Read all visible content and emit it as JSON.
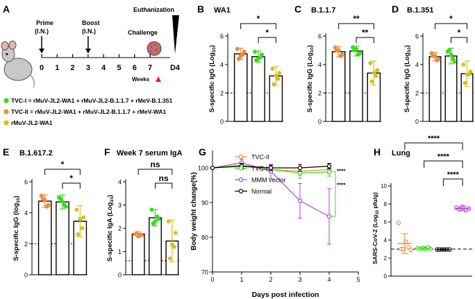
{
  "panel_letters": {
    "A": "A",
    "B": "B",
    "C": "C",
    "D": "D",
    "E": "E",
    "F": "F",
    "G": "G",
    "H": "H"
  },
  "timeline": {
    "prime": "Prime",
    "prime_sub": "(I.N.)",
    "boost": "Boost",
    "boost_sub": "(I.N.)",
    "euthanization": "Euthanization",
    "challenge": "Challenge",
    "weeks_label": "Weeks",
    "ticks": [
      "0",
      "1",
      "2",
      "3",
      "4",
      "5",
      "6",
      "7",
      "D4"
    ],
    "prime_week": 0,
    "boost_week": 3,
    "challenge_week": 7
  },
  "legend_A": [
    {
      "text": "TVC-I = rMuV-JL2-WA1 + rMuV-JL2-B.1.1.7 + rMeV-B.1.351",
      "color": "#3ddc1e"
    },
    {
      "text": "TVC-II = rMuV-JL2-WA1 + rMuV-JL2-B.1.1.7 + rMeV-WA1",
      "color": "#f08a3c"
    },
    {
      "text": "rMuV-JL2-WA1",
      "color": "#d4c21e"
    }
  ],
  "colors": {
    "orange": "#f08a3c",
    "green": "#3ddc1e",
    "olive": "#d4c21e",
    "purple": "#b43fe0",
    "black": "#000000",
    "gray": "#555555"
  },
  "chart_data": [
    {
      "id": "B",
      "type": "bar",
      "title": "WA1",
      "ylabel": "S-specific IgG (Log10)",
      "ylabel_main": "S-specific IgG (Log",
      "ylabel_sub": "10",
      "ylabel_end": ")",
      "ylim": [
        0,
        6
      ],
      "yticks": [
        "0",
        "2",
        "4",
        "6"
      ],
      "dotted_line": 2,
      "categories": [
        "TVC-II",
        "TVC-I",
        "rMuV-JL2-WA1"
      ],
      "values": [
        4.75,
        4.55,
        3.2
      ],
      "errors": [
        0.4,
        0.4,
        0.65
      ],
      "colors": [
        "#f08a3c",
        "#3ddc1e",
        "#d4c21e"
      ],
      "points": [
        [
          5.1,
          4.9,
          4.4,
          4.7,
          4.6
        ],
        [
          4.9,
          4.7,
          4.3,
          4.5,
          4.4
        ],
        [
          3.7,
          3.4,
          2.6,
          3.0,
          3.2
        ]
      ],
      "significance": [
        {
          "from": 0,
          "to": 2,
          "label": "*"
        },
        {
          "from": 1,
          "to": 2,
          "label": "*"
        }
      ]
    },
    {
      "id": "C",
      "type": "bar",
      "title": "B.1.1.7",
      "ylabel": "S-specific IgG (Log10)",
      "ylabel_main": "S-specific IgG (Log",
      "ylabel_sub": "10",
      "ylabel_end": ")",
      "ylim": [
        0,
        6
      ],
      "yticks": [
        "0",
        "2",
        "4",
        "6"
      ],
      "dotted_line": 2,
      "categories": [
        "TVC-II",
        "TVC-I",
        "rMuV-JL2-WA1"
      ],
      "values": [
        4.9,
        4.95,
        3.4
      ],
      "errors": [
        0.35,
        0.35,
        0.85
      ],
      "colors": [
        "#f08a3c",
        "#3ddc1e",
        "#d4c21e"
      ],
      "points": [
        [
          5.2,
          4.7,
          5.0,
          4.6,
          5.0
        ],
        [
          5.2,
          4.8,
          5.0,
          4.7,
          5.1
        ],
        [
          4.1,
          3.6,
          2.8,
          3.2,
          3.4
        ]
      ],
      "significance": [
        {
          "from": 0,
          "to": 2,
          "label": "**"
        },
        {
          "from": 1,
          "to": 2,
          "label": "**"
        }
      ]
    },
    {
      "id": "D",
      "type": "bar",
      "title": "B.1.351",
      "ylabel": "S-specific IgG (Log10)",
      "ylabel_main": "S-specific IgG (Log",
      "ylabel_sub": "10",
      "ylabel_end": ")",
      "ylim": [
        0,
        6
      ],
      "yticks": [
        "0",
        "2",
        "4",
        "6"
      ],
      "dotted_line": 2,
      "categories": [
        "TVC-II",
        "TVC-I",
        "rMuV-JL2-WA1"
      ],
      "values": [
        4.55,
        4.6,
        3.35
      ],
      "errors": [
        0.3,
        0.55,
        0.9
      ],
      "colors": [
        "#f08a3c",
        "#3ddc1e",
        "#d4c21e"
      ],
      "points": [
        [
          4.8,
          4.4,
          4.6,
          4.3,
          4.6
        ],
        [
          4.9,
          4.2,
          5.0,
          4.4,
          4.7
        ],
        [
          4.0,
          3.5,
          2.7,
          3.3,
          3.3
        ]
      ],
      "significance": [
        {
          "from": 0,
          "to": 2,
          "label": "*"
        },
        {
          "from": 1,
          "to": 2,
          "label": "*"
        }
      ]
    },
    {
      "id": "E",
      "type": "bar",
      "title": "B.1.617.2",
      "ylabel": "S-specific IgG (log10)",
      "ylabel_main": "S-specific IgG (log",
      "ylabel_sub": "10",
      "ylabel_end": ")",
      "ylim": [
        0,
        6
      ],
      "yticks": [
        "0",
        "2",
        "4",
        "6"
      ],
      "dotted_line": 2,
      "categories": [
        "TVC-II",
        "TVC-I",
        "rMuV-JL2-WA1"
      ],
      "values": [
        4.75,
        4.7,
        3.45
      ],
      "errors": [
        0.4,
        0.45,
        1.0
      ],
      "colors": [
        "#f08a3c",
        "#3ddc1e",
        "#d4c21e"
      ],
      "points": [
        [
          5.1,
          4.5,
          4.9,
          4.4,
          4.8
        ],
        [
          5.0,
          4.4,
          4.9,
          4.5,
          4.7
        ],
        [
          4.2,
          3.7,
          2.6,
          3.0,
          3.6
        ]
      ],
      "significance": [
        {
          "from": 0,
          "to": 2,
          "label": "*"
        },
        {
          "from": 1,
          "to": 2,
          "label": "*"
        }
      ]
    },
    {
      "id": "F",
      "type": "bar",
      "title": "Week 7 serum IgA",
      "ylabel": "S-specific IgA (Log10)",
      "ylabel_main": "S-specific IgA (Log",
      "ylabel_sub": "10",
      "ylabel_end": ")",
      "ylim": [
        0,
        4
      ],
      "yticks": [
        "0",
        "1",
        "2",
        "3",
        "4"
      ],
      "dotted_line": 0.6,
      "categories": [
        "TVC-II",
        "TVC-I",
        "rMuV-JL2-WA1"
      ],
      "values": [
        1.75,
        2.45,
        1.45
      ],
      "errors": [
        0.1,
        0.35,
        0.9
      ],
      "colors": [
        "#f08a3c",
        "#3ddc1e",
        "#d4c21e"
      ],
      "points": [
        [
          1.75,
          1.7,
          1.8,
          1.75,
          1.65
        ],
        [
          2.8,
          2.4,
          2.2,
          2.5,
          2.3
        ],
        [
          2.3,
          1.8,
          0.7,
          1.2,
          1.3
        ]
      ],
      "significance": [
        {
          "from": 0,
          "to": 2,
          "label": "ns"
        },
        {
          "from": 1,
          "to": 2,
          "label": "ns"
        }
      ]
    },
    {
      "id": "G",
      "type": "line",
      "title": "",
      "xlabel": "Days post infection",
      "ylabel": "Body weight change(%)",
      "xlim": [
        0,
        5
      ],
      "ylim": [
        70,
        105
      ],
      "xticks": [
        "0",
        "1",
        "2",
        "3",
        "4",
        "5"
      ],
      "yticks": [
        "70",
        "80",
        "90",
        "100"
      ],
      "series": [
        {
          "name": "TVC-II",
          "color": "#f08a3c",
          "x": [
            0,
            1,
            2,
            3,
            4
          ],
          "y": [
            100,
            100.5,
            99.5,
            99,
            99.5
          ],
          "err": [
            0,
            1,
            1,
            1.2,
            1
          ]
        },
        {
          "name": "TVC-I",
          "color": "#3ddc1e",
          "x": [
            0,
            1,
            2,
            3,
            4
          ],
          "y": [
            100,
            100.8,
            99.5,
            98.5,
            98.8
          ],
          "err": [
            0,
            1,
            1,
            1.5,
            1.2
          ]
        },
        {
          "name": "MMM vector",
          "color": "#b43fe0",
          "x": [
            0,
            1,
            2,
            3,
            4
          ],
          "y": [
            100,
            101.5,
            99,
            90.5,
            86
          ],
          "err": [
            0,
            1,
            2,
            5,
            8
          ]
        },
        {
          "name": "Normal",
          "color": "#000000",
          "x": [
            0,
            1,
            2,
            3,
            4
          ],
          "y": [
            100,
            100.5,
            100,
            100,
            100.5
          ],
          "err": [
            0,
            0.8,
            0.8,
            1,
            0.8
          ]
        }
      ],
      "significance": [
        {
          "label": "****",
          "color": "#3ddc1e"
        },
        {
          "label": "****",
          "color": "#f08a3c"
        }
      ]
    },
    {
      "id": "H",
      "type": "scatter",
      "title": "Lung",
      "ylabel": "SARS-CoV-2 (Log10 pfu/g)",
      "ylabel_main": "SARS-CoV-2 (Log",
      "ylabel_sub": "10",
      "ylabel_end": " pfu/g)",
      "ylim": [
        0,
        10
      ],
      "yticks": [
        "0",
        "2",
        "4",
        "6",
        "8",
        "10"
      ],
      "dashed_line": 3.0,
      "categories": [
        "TVC-II",
        "TVC-I",
        "Normal",
        "MMM vector"
      ],
      "means": [
        3.6,
        3.1,
        2.95,
        7.5
      ],
      "errors": [
        1.1,
        0.15,
        0.05,
        0.25
      ],
      "colors": [
        "#f08a3c",
        "#3ddc1e",
        "#000000",
        "#b43fe0"
      ],
      "points": [
        [
          5.9,
          3.0,
          3.0,
          3.8,
          3.2,
          2.9
        ],
        [
          3.1,
          3.0,
          3.1,
          3.0,
          3.2,
          3.0
        ],
        [
          2.95,
          2.95,
          2.95,
          2.95,
          2.95,
          2.95
        ],
        [
          7.6,
          7.4,
          7.7,
          7.3,
          7.5
        ]
      ],
      "significance": [
        {
          "from": 0,
          "to": 3,
          "label": "****"
        },
        {
          "from": 1,
          "to": 3,
          "label": "****"
        },
        {
          "from": 2,
          "to": 3,
          "label": "****"
        }
      ]
    }
  ]
}
